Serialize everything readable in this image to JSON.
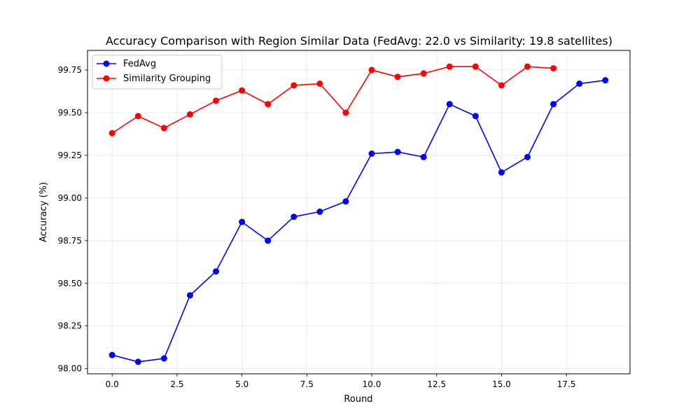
{
  "chart_data": {
    "type": "line",
    "title": "Accuracy Comparison with Region Similar Data (FedAvg: 22.0 vs Similarity: 19.8 satellites)",
    "xlabel": "Round",
    "ylabel": "Accuracy (%)",
    "xlim": [
      -0.95,
      19.95
    ],
    "ylim": [
      97.97,
      99.865
    ],
    "xticks": [
      0.0,
      2.5,
      5.0,
      7.5,
      10.0,
      12.5,
      15.0,
      17.5
    ],
    "xtick_labels": [
      "0.0",
      "2.5",
      "5.0",
      "7.5",
      "10.0",
      "12.5",
      "15.0",
      "17.5"
    ],
    "yticks": [
      98.0,
      98.25,
      98.5,
      98.75,
      99.0,
      99.25,
      99.5,
      99.75
    ],
    "ytick_labels": [
      "98.00",
      "98.25",
      "98.50",
      "98.75",
      "99.00",
      "99.25",
      "99.50",
      "99.75"
    ],
    "grid": true,
    "legend_position": "top-left",
    "series": [
      {
        "name": "FedAvg",
        "color": "#0000ff",
        "x": [
          0,
          1,
          2,
          3,
          4,
          5,
          6,
          7,
          8,
          9,
          10,
          11,
          12,
          13,
          14,
          15,
          16,
          17,
          18,
          19
        ],
        "values": [
          98.08,
          98.04,
          98.06,
          98.43,
          98.57,
          98.86,
          98.75,
          98.89,
          98.92,
          98.98,
          99.26,
          99.27,
          99.24,
          99.55,
          99.48,
          99.15,
          99.24,
          99.55,
          99.67,
          99.69
        ]
      },
      {
        "name": "Similarity Grouping",
        "color": "#ff0000",
        "x": [
          0,
          1,
          2,
          3,
          4,
          5,
          6,
          7,
          8,
          9,
          10,
          11,
          12,
          13,
          14,
          15,
          16,
          17
        ],
        "values": [
          99.38,
          99.48,
          99.41,
          99.49,
          99.57,
          99.63,
          99.55,
          99.66,
          99.67,
          99.5,
          99.75,
          99.71,
          99.73,
          99.77,
          99.77,
          99.66,
          99.77,
          99.76
        ]
      }
    ]
  }
}
